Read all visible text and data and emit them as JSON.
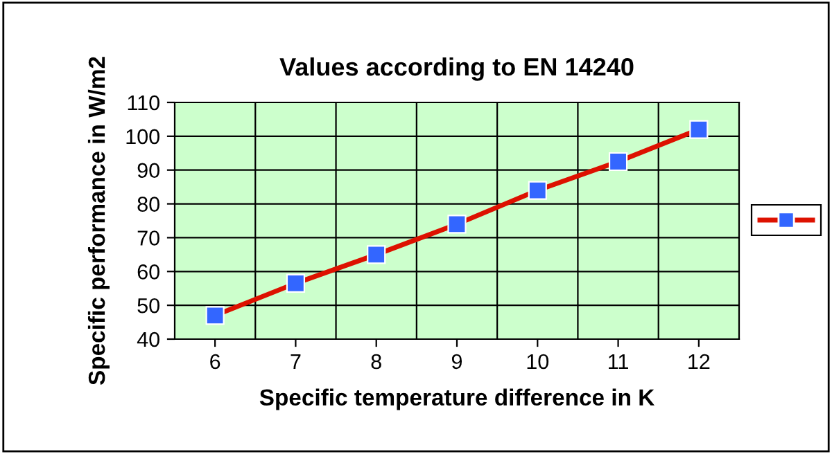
{
  "chart_data": {
    "type": "line",
    "title": "Values according to EN 14240",
    "xlabel": "Specific temperature difference in K",
    "ylabel": "Specific performance in W/m2",
    "categories": [
      "6",
      "7",
      "8",
      "9",
      "10",
      "11",
      "12"
    ],
    "series": [
      {
        "color": "#dd1100",
        "values": [
          47,
          56.5,
          65,
          74,
          84,
          92.5,
          102
        ]
      }
    ],
    "marker": "square",
    "line_style": "solid",
    "ylim": [
      40,
      110
    ],
    "yticks": [
      40,
      50,
      60,
      70,
      80,
      90,
      100,
      110
    ],
    "grid": true
  }
}
